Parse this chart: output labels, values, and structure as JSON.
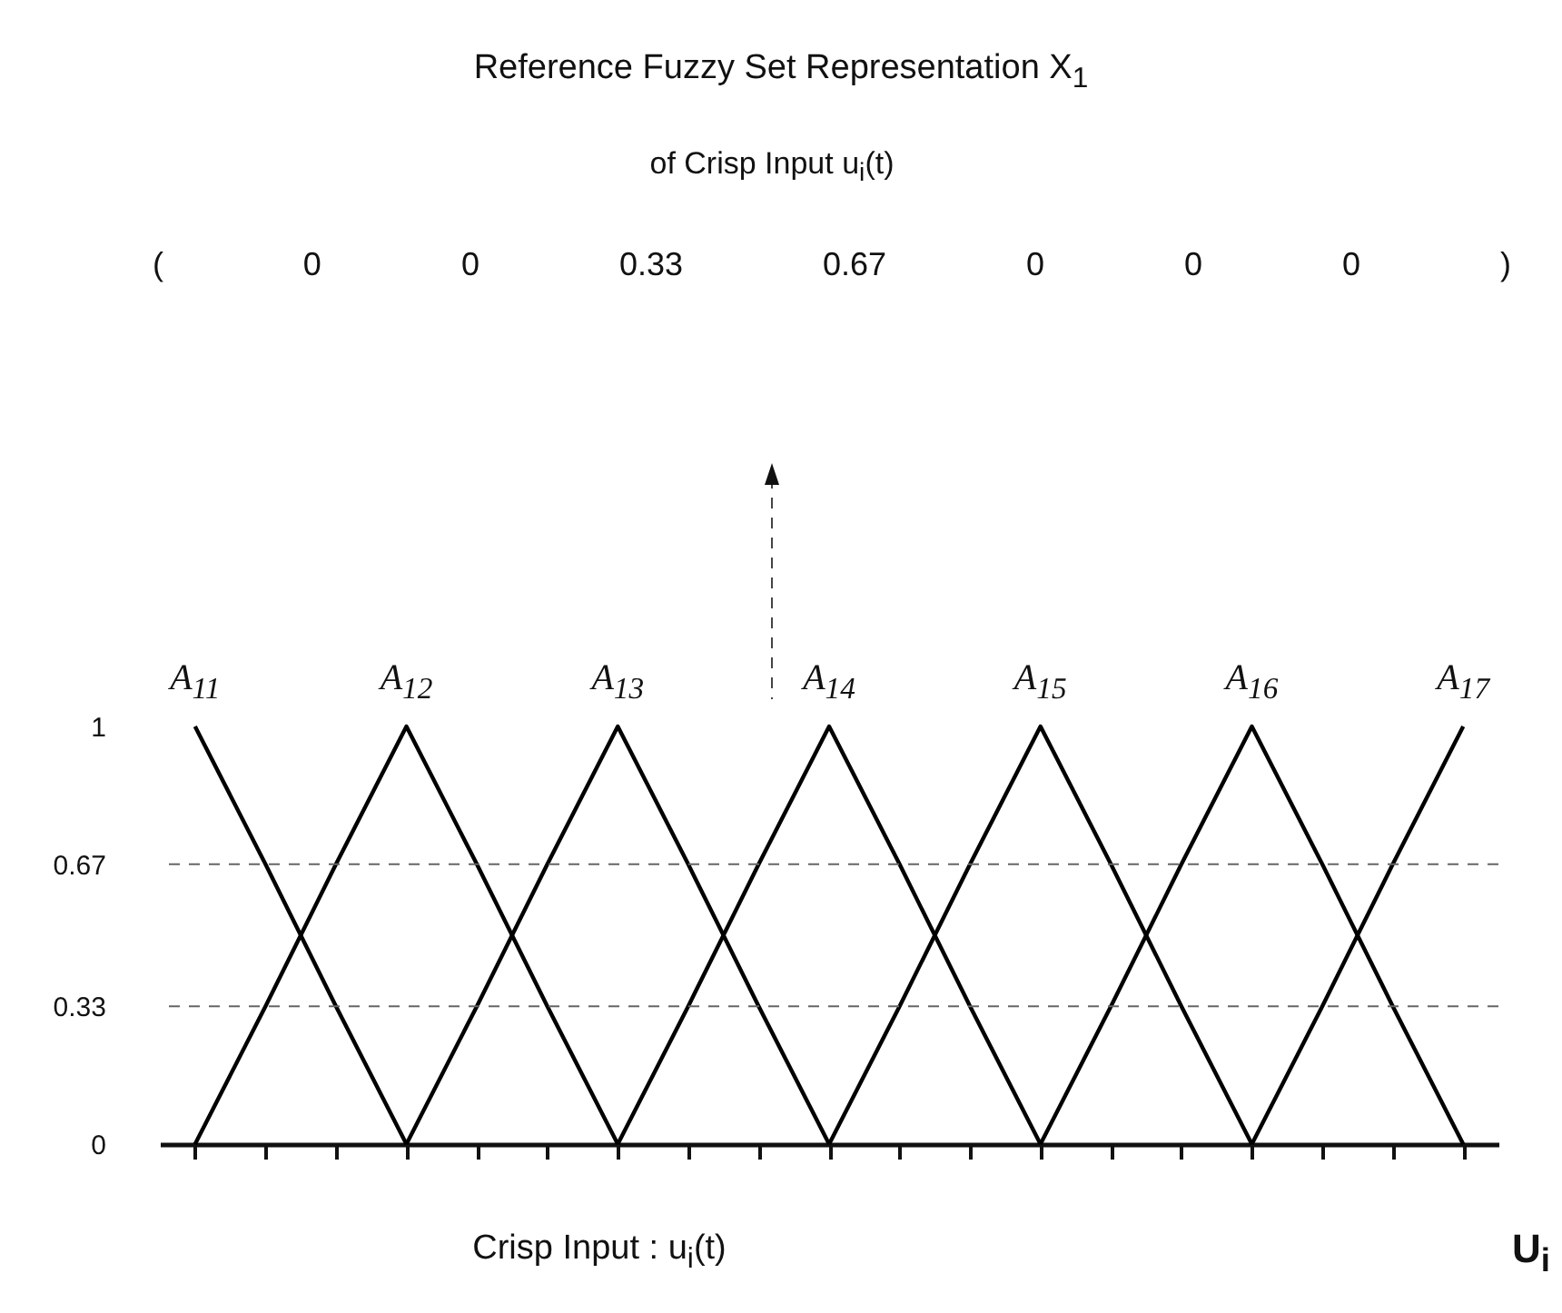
{
  "chart_data": {
    "type": "line",
    "title": "Reference Fuzzy Set Representation  X$_{1}$",
    "subtitle": "of Crisp Input  u$_{i}$(t)",
    "xlabel": "Crisp Input :   u$_{i}$(t)",
    "annotations": [
      "( 0 0 0.33 0.67 0 0 0 )",
      "U$_{i}$"
    ],
    "categories": [
      null,
      null,
      null,
      null,
      null,
      null,
      null,
      null,
      null,
      null,
      null,
      null,
      null,
      null,
      null,
      null,
      null,
      null,
      null
    ],
    "series": [
      {
        "name": "A$_{11}$",
        "color": "#000000",
        "values": [
          1,
          0.67,
          0.33,
          0,
          null,
          null,
          null,
          null,
          null,
          null,
          null,
          null,
          null,
          null,
          null,
          null,
          null,
          null,
          null
        ]
      },
      {
        "name": "A$_{12}$",
        "color": "#000000",
        "values": [
          0,
          0.33,
          0.67,
          1,
          0.67,
          0.33,
          0,
          null,
          null,
          null,
          null,
          null,
          null,
          null,
          null,
          null,
          null,
          null,
          null
        ]
      },
      {
        "name": "A$_{13}$",
        "color": "#000000",
        "values": [
          null,
          null,
          null,
          0,
          0.33,
          0.67,
          1,
          0.67,
          0.33,
          0,
          null,
          null,
          null,
          null,
          null,
          null,
          null,
          null,
          null
        ]
      },
      {
        "name": "A$_{14}$",
        "color": "#000000",
        "values": [
          null,
          null,
          null,
          null,
          null,
          null,
          0,
          0.33,
          0.67,
          1,
          0.67,
          0.33,
          0,
          null,
          null,
          null,
          null,
          null,
          null
        ]
      },
      {
        "name": "A$_{15}$",
        "color": "#000000",
        "values": [
          null,
          null,
          null,
          null,
          null,
          null,
          null,
          null,
          null,
          0,
          0.33,
          0.67,
          1,
          0.67,
          0.33,
          0,
          null,
          null,
          null
        ]
      },
      {
        "name": "A$_{16}$",
        "color": "#000000",
        "values": [
          null,
          null,
          null,
          null,
          null,
          null,
          null,
          null,
          null,
          null,
          null,
          null,
          0,
          0.33,
          0.67,
          1,
          0.67,
          0.33,
          0
        ]
      },
      {
        "name": "A$_{17}$",
        "color": "#000000",
        "values": [
          null,
          null,
          null,
          null,
          null,
          null,
          null,
          null,
          null,
          null,
          null,
          null,
          null,
          null,
          null,
          0,
          0.33,
          0.67,
          1
        ]
      }
    ],
    "ylim": [
      0,
      1
    ],
    "yticks": [
      0,
      0.33,
      0.67,
      1
    ],
    "tick_labels": "y",
    "line_style": "solid",
    "ref_lines": [
      {
        "axis": "y",
        "value": 0.67,
        "line_style": "dashed",
        "color": "#666666"
      },
      {
        "axis": "y",
        "value": 0.33,
        "line_style": "dashed",
        "color": "#666666"
      }
    ]
  }
}
